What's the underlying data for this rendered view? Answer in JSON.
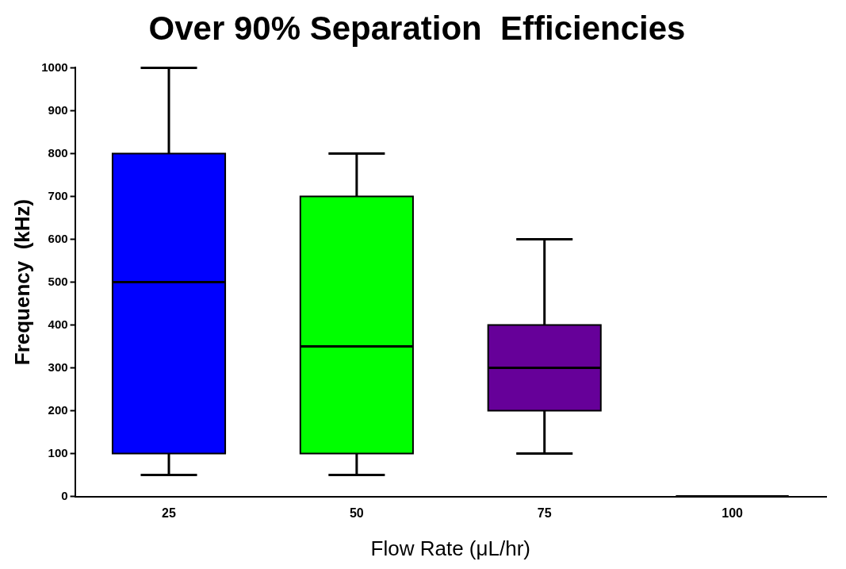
{
  "chart_data": {
    "type": "box",
    "title": "Over 90% Separation  Efficiencies",
    "xlabel": "Flow Rate (μL/hr)",
    "ylabel": "Frequency  (kHz)",
    "categories": [
      "25",
      "50",
      "75",
      "100"
    ],
    "colors": [
      "#0000ff",
      "#00ff00",
      "#660099",
      "#000000"
    ],
    "boxes": [
      {
        "low": 50,
        "q1": 100,
        "median": 500,
        "q3": 800,
        "high": 1000
      },
      {
        "low": 50,
        "q1": 100,
        "median": 350,
        "q3": 700,
        "high": 800
      },
      {
        "low": 100,
        "q1": 200,
        "median": 300,
        "q3": 400,
        "high": 600
      },
      {
        "low": 0,
        "q1": 0,
        "median": 0,
        "q3": 0,
        "high": 0
      }
    ],
    "ylim": [
      0,
      1000
    ],
    "yticks": [
      0,
      100,
      200,
      300,
      400,
      500,
      600,
      700,
      800,
      900,
      1000
    ],
    "grid": false,
    "legend": false
  }
}
